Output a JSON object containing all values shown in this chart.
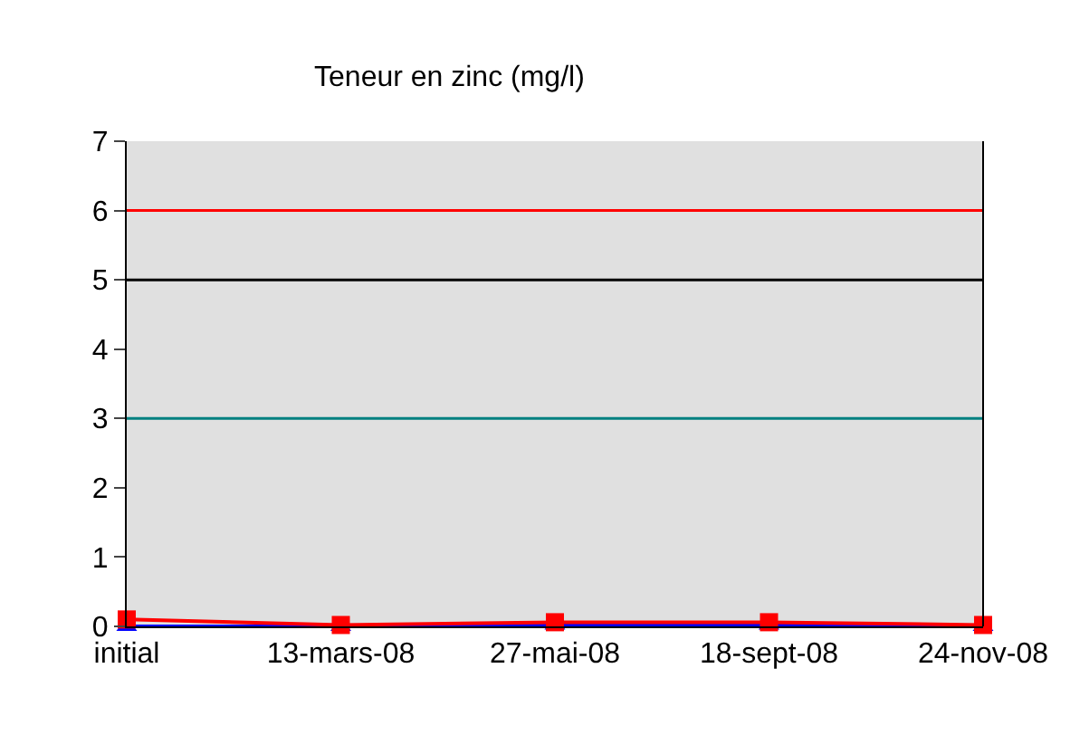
{
  "chart_data": {
    "type": "line",
    "title": "Teneur en zinc (mg/l)",
    "categories": [
      "initial",
      "13-mars-08",
      "27-mai-08",
      "18-sept-08",
      "24-nov-08"
    ],
    "series": [
      {
        "color": "#0000ff",
        "marker": "triangle",
        "values": [
          0,
          0,
          0.02,
          0.02,
          0
        ]
      },
      {
        "color": "#ff0000",
        "marker": "square",
        "values": [
          0.1,
          0.02,
          0.06,
          0.06,
          0.02
        ]
      }
    ],
    "ylim": [
      0,
      7
    ],
    "yticks": [
      0,
      1,
      2,
      3,
      4,
      5,
      6,
      7
    ],
    "ref_lines": [
      {
        "axis": "y",
        "value": 6,
        "color": "#ff0000"
      },
      {
        "axis": "y",
        "value": 5,
        "color": "#000000"
      },
      {
        "axis": "y",
        "value": 3,
        "color": "#008080"
      }
    ]
  }
}
